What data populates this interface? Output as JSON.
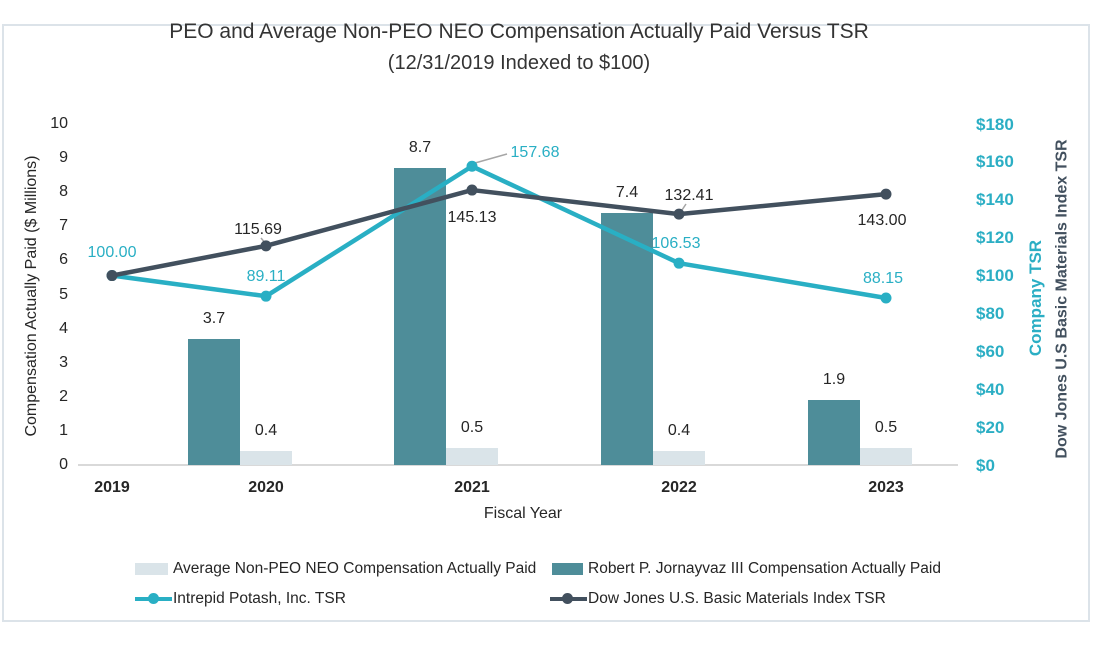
{
  "chart": {
    "title_line1": "PEO and Average Non-PEO NEO Compensation Actually Paid Versus TSR",
    "title_line2": "(12/31/2019 Indexed to $100)"
  },
  "chart_data": {
    "type": "combo-bar-line",
    "title": "PEO and Average Non-PEO NEO Compensation Actually Paid Versus TSR",
    "subtitle": "(12/31/2019 Indexed to $100)",
    "categories": [
      "2019",
      "2020",
      "2021",
      "2022",
      "2023"
    ],
    "xlabel": "Fiscal Year",
    "left_axis": {
      "title": "Compensation Actually Paid ($ Millions)",
      "ticks": [
        0,
        1,
        2,
        3,
        4,
        5,
        6,
        7,
        8,
        9,
        10
      ],
      "range": [
        0,
        10
      ],
      "grid": false
    },
    "right_axis": {
      "title_company": "Company TSR",
      "title_index": "Dow Jones U.S Basic Materials Index TSR",
      "ticks": [
        "$0",
        "$20",
        "$40",
        "$60",
        "$80",
        "$100",
        "$120",
        "$140",
        "$160",
        "$180"
      ],
      "tick_values": [
        0,
        20,
        40,
        60,
        80,
        100,
        120,
        140,
        160,
        180
      ],
      "range": [
        0,
        180
      ]
    },
    "bar_series": [
      {
        "key": "peo",
        "name": "Robert P. Jornayvaz III Compensation Actually Paid",
        "color": "#4e8d99",
        "values": [
          null,
          3.7,
          8.7,
          7.4,
          1.9
        ],
        "labels": [
          "",
          "3.7",
          "8.7",
          "7.4",
          "1.9"
        ]
      },
      {
        "key": "nonpeo",
        "name": "Average Non-PEO NEO Compensation Actually Paid",
        "color": "#dae4e9",
        "values": [
          null,
          0.4,
          0.5,
          0.4,
          0.5
        ],
        "labels": [
          "",
          "0.4",
          "0.5",
          "0.4",
          "0.5"
        ]
      }
    ],
    "line_series": [
      {
        "key": "intrepid",
        "name": "Intrepid Potash, Inc. TSR",
        "color": "#29afc4",
        "values": [
          100.0,
          89.11,
          157.68,
          106.53,
          88.15
        ],
        "labels": [
          "100.00",
          "89.11",
          "157.68",
          "106.53",
          "88.15"
        ]
      },
      {
        "key": "dowjones",
        "name": "Dow Jones U.S. Basic Materials Index TSR",
        "color": "#42505e",
        "values": [
          100.0,
          115.69,
          145.13,
          132.41,
          143.0
        ],
        "labels": [
          "",
          "115.69",
          "145.13",
          "132.41",
          "143.00"
        ]
      }
    ],
    "legend": [
      {
        "label": "Average Non-PEO NEO Compensation Actually Paid",
        "swatch": "bar",
        "color": "#dae4e9"
      },
      {
        "label": "Robert P. Jornayvaz III Compensation Actually Paid",
        "swatch": "bar",
        "color": "#4e8d99"
      },
      {
        "label": "Intrepid Potash, Inc. TSR",
        "swatch": "line",
        "color": "#29afc4"
      },
      {
        "label": "Dow Jones U.S. Basic Materials Index TSR",
        "swatch": "line",
        "color": "#42505e"
      }
    ],
    "colors": {
      "peo_bar": "#4e8d99",
      "nonpeo_bar": "#dae4e9",
      "company_tsr_line": "#29afc4",
      "index_tsr_line": "#42505e",
      "axis_baseline": "#d9d9d9",
      "leader_line": "#a6a6a6",
      "frame_border": "#dce3e9"
    }
  }
}
